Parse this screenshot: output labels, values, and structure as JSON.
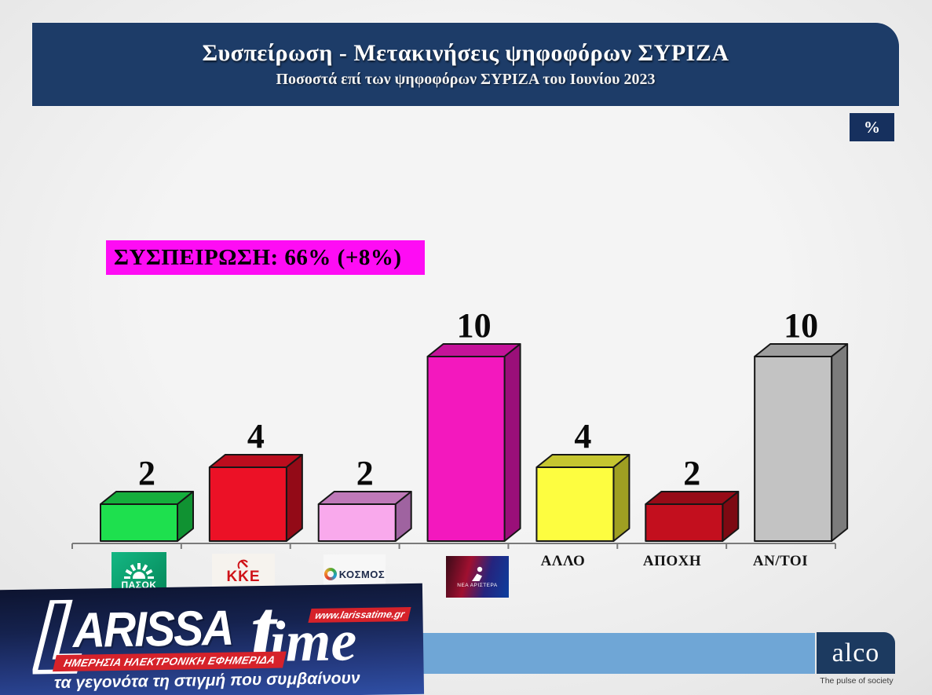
{
  "header": {
    "title": "Συσπείρωση - Μετακινήσεις ψηφοφόρων ΣΥΡΙΖΑ",
    "subtitle": "Ποσοστά επί των ψηφοφόρων ΣΥΡΙΖΑ του Ιουνίου 2023",
    "unit_badge": "%"
  },
  "cohesion": {
    "label": "ΣΥΣΠΕΙΡΩΣΗ: 66% (+8%)",
    "bg": "#fe0cf4"
  },
  "chart_data": {
    "type": "bar",
    "title": "Συσπείρωση - Μετακινήσεις ψηφοφόρων ΣΥΡΙΖΑ",
    "subtitle": "Ποσοστά επί των ψηφοφόρων ΣΥΡΙΖΑ του Ιουνίου 2023",
    "unit": "%",
    "categories": [
      "ΠΑΣΟΚ",
      "ΚΚΕ",
      "ΚΟΣΜΟΣ",
      "ΝΕΑ ΑΡΙΣΤΕΡΑ",
      "ΑΛΛΟ",
      "ΑΠΟΧΗ",
      "ΑΝ/ΤΟΙ"
    ],
    "values": [
      2,
      4,
      2,
      10,
      4,
      2,
      10
    ],
    "ylim": [
      0,
      10
    ],
    "grid": false,
    "legend": false,
    "annotation": "ΣΥΣΠΕΙΡΩΣΗ: 66% (+8%)",
    "bar_colors": [
      {
        "front": "#1ee04e",
        "top": "#15ae3c",
        "side": "#109232"
      },
      {
        "front": "#ec1126",
        "top": "#bb0d1e",
        "side": "#930a17"
      },
      {
        "front": "#f9a9ec",
        "top": "#bf79b8",
        "side": "#9f63a0"
      },
      {
        "front": "#f318be",
        "top": "#c41399",
        "side": "#9a0f79"
      },
      {
        "front": "#fdfd40",
        "top": "#c6c630",
        "side": "#9f9f22"
      },
      {
        "front": "#c30f1e",
        "top": "#970b17",
        "side": "#7d0912"
      },
      {
        "front": "#c3c3c3",
        "top": "#9d9d9d",
        "side": "#7c7c7c"
      }
    ],
    "axis_color": "#7a7a7a"
  },
  "watermark": {
    "initial": "L",
    "name_rest": "ARISSA",
    "time": "time",
    "time_initial": "t",
    "time_rest": "ime",
    "url": "www.larissatime.gr",
    "strip": "ΗΜΕΡΗΣΙΑ ΗΛΕΚΤΡΟΝΙΚΗ ΕΦΗΜΕΡΙΔΑ",
    "tagline": "τα γεγονότα τη στιγμή που συμβαίνουν"
  },
  "alco": {
    "name": "alco",
    "tagline": "The pulse of society"
  },
  "colors": {
    "banner_bg": "#1d3c68",
    "percent_badge_bg": "#16305e",
    "cohesion_bg": "#fe0cf4",
    "footer_band": "#6fa6d6",
    "alco_bg": "#1c3a60",
    "watermark_red": "#d6222a"
  }
}
